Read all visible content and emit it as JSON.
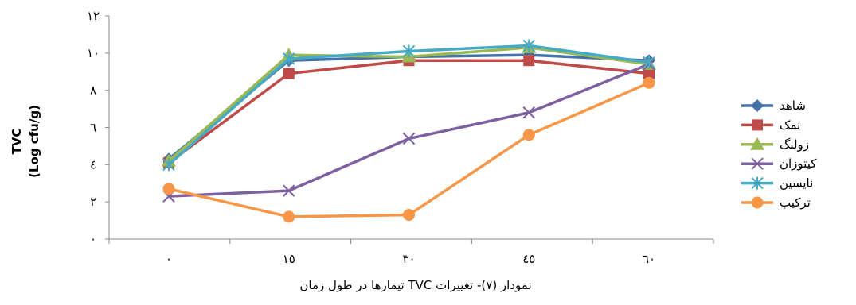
{
  "chart_data": {
    "type": "line",
    "title": "",
    "categories": [
      "٠",
      "١٥",
      "٣٠",
      "٤٥",
      "٦٠"
    ],
    "x": [
      0,
      15,
      30,
      45,
      60
    ],
    "y_ticks": [
      "٠",
      "٢",
      "٤",
      "٦",
      "٨",
      "١٠",
      "١٢"
    ],
    "ylim": [
      0,
      12
    ],
    "ylabel_line1": "TVC",
    "ylabel_line2": "(Log cfu/g)",
    "xlabel": "",
    "caption": "نمودار (٧)- تغییرات TVC تیمارها در طول زمان",
    "grid": false,
    "legend_position": "right",
    "series": [
      {
        "name": "شاهد",
        "color": "#4572A7",
        "marker": "diamond",
        "values": [
          4.3,
          9.6,
          9.8,
          9.9,
          9.6
        ]
      },
      {
        "name": "نمک",
        "color": "#BE4B48",
        "marker": "square",
        "values": [
          4.1,
          8.9,
          9.6,
          9.6,
          8.9
        ]
      },
      {
        "name": "زولنگ",
        "color": "#98B954",
        "marker": "triangle",
        "values": [
          4.2,
          9.9,
          9.8,
          10.3,
          9.4
        ]
      },
      {
        "name": "کیتوزان",
        "color": "#7D60A0",
        "marker": "x",
        "values": [
          2.3,
          2.6,
          5.4,
          6.8,
          9.4
        ]
      },
      {
        "name": "نایسین",
        "color": "#46AAC5",
        "marker": "star",
        "values": [
          4.0,
          9.7,
          10.1,
          10.4,
          9.5
        ]
      },
      {
        "name": "ترکیب",
        "color": "#F79646",
        "marker": "circle",
        "values": [
          2.7,
          1.2,
          1.3,
          5.6,
          8.4
        ]
      }
    ]
  }
}
